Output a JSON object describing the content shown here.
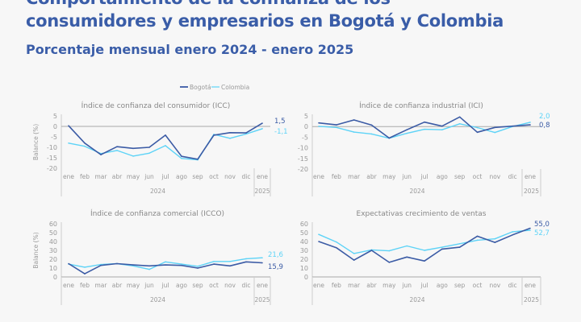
{
  "header": {
    "title_line1": "Comportamiento de la confianza de los",
    "title_line2": "consumidores y empresarios en Bogotá y Colombia",
    "subtitle": "Porcentaje mensual enero 2024 - enero 2025"
  },
  "legend": [
    {
      "name": "Bogotá",
      "color": "#3b5ba5"
    },
    {
      "name": "Colombia",
      "color": "#5dd3f7"
    }
  ],
  "chart_data": [
    {
      "type": "line",
      "title": "Índice de confianza del consumidor (ICC)",
      "ylabel": "Balance (%)",
      "ylim": [
        -20,
        5
      ],
      "yticks": [
        "5",
        "0",
        "-5",
        "-10",
        "-15",
        "-20"
      ],
      "categories": [
        "ene",
        "feb",
        "mar",
        "abr",
        "may",
        "jun",
        "jul",
        "ago",
        "sep",
        "oct",
        "nov",
        "dic",
        "ene"
      ],
      "year_groups": [
        "2024",
        "2025"
      ],
      "zero_line": true,
      "series": [
        {
          "name": "Bogotá",
          "values": [
            0.3,
            -8,
            -13.5,
            -9.7,
            -10.5,
            -10,
            -4.2,
            -14.3,
            -15.7,
            -4.2,
            -3,
            -3.1,
            1.5
          ],
          "end_label": "1,5"
        },
        {
          "name": "Colombia",
          "values": [
            -8,
            -9.5,
            -13,
            -11.5,
            -14.2,
            -12.8,
            -9.2,
            -15.3,
            -16,
            -3.8,
            -5.7,
            -3.6,
            -1.1
          ],
          "end_label": "-1,1"
        }
      ]
    },
    {
      "type": "line",
      "title": "Índice de confianza industrial (ICI)",
      "ylabel": "",
      "ylim": [
        -20,
        5
      ],
      "yticks": [
        "5",
        "0",
        "-5",
        "-10",
        "-15",
        "-20"
      ],
      "categories": [
        "ene",
        "feb",
        "mar",
        "abr",
        "may",
        "jun",
        "jul",
        "ago",
        "sep",
        "oct",
        "nov",
        "dic",
        "ene"
      ],
      "year_groups": [
        "2024",
        "2025"
      ],
      "zero_line": true,
      "series": [
        {
          "name": "Bogotá",
          "values": [
            1.7,
            0.8,
            3.1,
            0.7,
            -5.4,
            -1.5,
            2.1,
            0.2,
            4.5,
            -2.7,
            -0.4,
            0.2,
            0.8
          ],
          "end_label": "0,8"
        },
        {
          "name": "Colombia",
          "values": [
            0.1,
            -0.4,
            -2.6,
            -3.5,
            -5.5,
            -3.2,
            -1.3,
            -1.5,
            1.3,
            -0.5,
            -2.8,
            0,
            2.0
          ],
          "end_label": "2,0"
        }
      ]
    },
    {
      "type": "line",
      "title": "Índice de confianza comercial (ICCO)",
      "ylabel": "Balance (%)",
      "ylim": [
        0,
        60
      ],
      "yticks": [
        "60",
        "50",
        "40",
        "30",
        "20",
        "10",
        "0"
      ],
      "categories": [
        "ene",
        "feb",
        "mar",
        "abr",
        "may",
        "jun",
        "jul",
        "ago",
        "sep",
        "oct",
        "nov",
        "dic",
        "ene"
      ],
      "year_groups": [
        "2024",
        "2025"
      ],
      "zero_line": true,
      "series": [
        {
          "name": "Bogotá",
          "values": [
            15,
            3.5,
            13,
            15,
            13.5,
            12.5,
            13.5,
            13,
            10,
            14.5,
            12.5,
            17,
            15.9
          ],
          "end_label": "15,9"
        },
        {
          "name": "Colombia",
          "values": [
            14.5,
            11,
            14,
            15,
            12.5,
            8.5,
            17,
            14.5,
            12,
            17.5,
            17.5,
            20.5,
            21.6
          ],
          "end_label": "21,6"
        }
      ]
    },
    {
      "type": "line",
      "title": "Expectativas crecimiento de ventas",
      "ylabel": "",
      "ylim": [
        0,
        60
      ],
      "yticks": [
        "60",
        "50",
        "40",
        "30",
        "20",
        "10",
        "0"
      ],
      "categories": [
        "ene",
        "feb",
        "mar",
        "abr",
        "may",
        "jun",
        "jul",
        "ago",
        "sep",
        "oct",
        "nov",
        "dic",
        "ene"
      ],
      "year_groups": [
        "2024",
        "2025"
      ],
      "zero_line": true,
      "series": [
        {
          "name": "Bogotá",
          "values": [
            40,
            33,
            19,
            30,
            16.5,
            22.5,
            18,
            31.5,
            33.5,
            46,
            39,
            47.5,
            55.0
          ],
          "end_label": "55,0"
        },
        {
          "name": "Colombia",
          "values": [
            48,
            39.5,
            26.5,
            30.5,
            29.5,
            35,
            30,
            33.5,
            37.5,
            41.5,
            43,
            51,
            52.7
          ],
          "end_label": "52,7"
        }
      ]
    }
  ]
}
